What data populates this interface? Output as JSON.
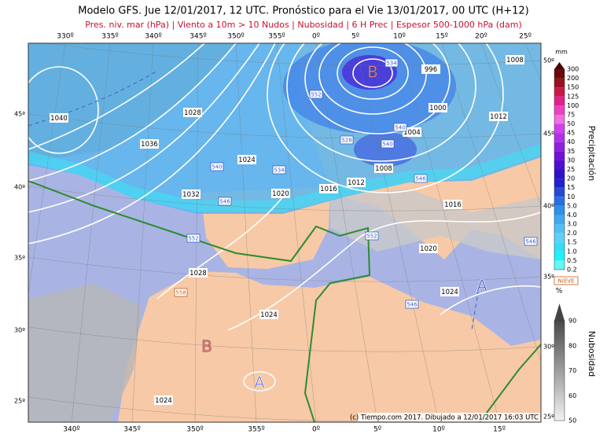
{
  "header": {
    "title": "Modelo GFS. Jue 12/01/2017, 12 UTC. Pronóstico para el Vie 13/01/2017, 00 UTC (H+12)",
    "subtitle": "Pres. niv. mar (hPa) | Viento a 10m > 10 Nudos | Nubosidad | 6 H Prec | Espesor 500-1000 hPa (dam)"
  },
  "map": {
    "top_lon_labels": [
      "330º",
      "335º",
      "340º",
      "345º",
      "350º",
      "355º",
      "0º",
      "5º",
      "10º",
      "15º",
      "20º",
      "25º"
    ],
    "bottom_lon_labels": [
      "340º",
      "345º",
      "350º",
      "355º",
      "0º",
      "5º",
      "10º",
      "15º"
    ],
    "left_lat_labels": [
      "45º",
      "40º",
      "35º",
      "30º",
      "25º"
    ],
    "right_lat_labels": [
      "50º",
      "45º",
      "40º",
      "35º",
      "30º",
      "25º"
    ],
    "isobar_labels": [
      "1040",
      "1036",
      "1028",
      "1024",
      "1032",
      "1020",
      "1016",
      "1012",
      "1008",
      "1004",
      "1000",
      "996",
      "1008",
      "1012",
      "1016",
      "1020",
      "1024",
      "1028",
      "1024",
      "1024"
    ],
    "thickness_labels": [
      "534",
      "552",
      "540",
      "540",
      "528",
      "534",
      "540",
      "546",
      "546",
      "552",
      "552",
      "546",
      "558",
      "546"
    ],
    "pressure_centers": [
      "B",
      "B",
      "A",
      "A"
    ],
    "credit": "(c) Tiempo.com 2017. Dibujado a 12/01/2017 16:03 UTC"
  },
  "precip_legend": {
    "unit": "mm",
    "title": "Precipitación",
    "labels": [
      "300",
      "200",
      "150",
      "125",
      "100",
      "75",
      "50",
      "45",
      "40",
      "35",
      "30",
      "25",
      "20",
      "15",
      "10",
      "5.0",
      "4.0",
      "3.0",
      "2.0",
      "1.5",
      "1.0",
      "0.5",
      "0.2"
    ]
  },
  "cloud_legend": {
    "snow": "NIEVE",
    "unit": "%",
    "title": "Nubosidad",
    "labels": [
      "90",
      "80",
      "70",
      "60",
      "50"
    ]
  }
}
